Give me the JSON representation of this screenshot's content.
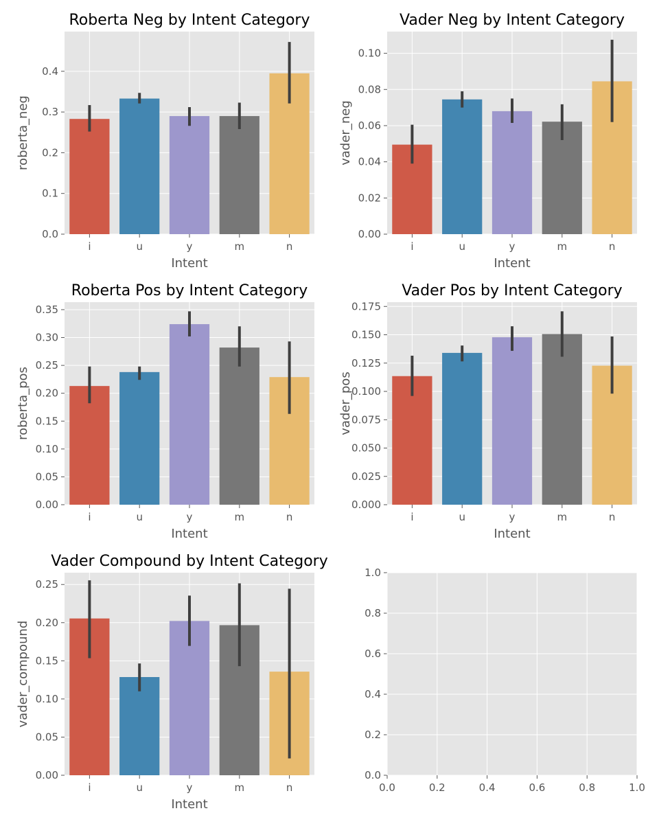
{
  "chart_data": [
    {
      "type": "bar",
      "title": "Roberta Neg by Intent Category",
      "xlabel": "Intent",
      "ylabel": "roberta_neg",
      "categories": [
        "i",
        "u",
        "y",
        "m",
        "n"
      ],
      "values": [
        0.283,
        0.333,
        0.29,
        0.29,
        0.395
      ],
      "error_bars": [
        [
          0.252,
          0.317
        ],
        [
          0.321,
          0.347
        ],
        [
          0.266,
          0.312
        ],
        [
          0.258,
          0.323
        ],
        [
          0.321,
          0.472
        ]
      ],
      "ylim": [
        0,
        0.4975
      ],
      "yticks": [
        0.0,
        0.1,
        0.2,
        0.3,
        0.4
      ],
      "tick_labels": [
        "0.0",
        "0.1",
        "0.2",
        "0.3",
        "0.4"
      ],
      "grid": true
    },
    {
      "type": "bar",
      "title": "Vader Neg by Intent Category",
      "xlabel": "Intent",
      "ylabel": "vader_neg",
      "categories": [
        "i",
        "u",
        "y",
        "m",
        "n"
      ],
      "values": [
        0.0495,
        0.0745,
        0.068,
        0.0622,
        0.0845
      ],
      "error_bars": [
        [
          0.039,
          0.0605
        ],
        [
          0.07,
          0.079
        ],
        [
          0.0615,
          0.075
        ],
        [
          0.052,
          0.0718
        ],
        [
          0.062,
          0.1075
        ]
      ],
      "ylim": [
        0,
        0.112
      ],
      "yticks": [
        0.0,
        0.02,
        0.04,
        0.06,
        0.08,
        0.1
      ],
      "tick_labels": [
        "0.00",
        "0.02",
        "0.04",
        "0.06",
        "0.08",
        "0.10"
      ],
      "grid": true
    },
    {
      "type": "bar",
      "title": "Roberta Pos by Intent Category",
      "xlabel": "Intent",
      "ylabel": "roberta_pos",
      "categories": [
        "i",
        "u",
        "y",
        "m",
        "n"
      ],
      "values": [
        0.213,
        0.238,
        0.324,
        0.282,
        0.229
      ],
      "error_bars": [
        [
          0.182,
          0.248
        ],
        [
          0.224,
          0.248
        ],
        [
          0.302,
          0.347
        ],
        [
          0.248,
          0.32
        ],
        [
          0.163,
          0.293
        ]
      ],
      "ylim": [
        0,
        0.3635
      ],
      "yticks": [
        0.0,
        0.05,
        0.1,
        0.15,
        0.2,
        0.25,
        0.3,
        0.35
      ],
      "tick_labels": [
        "0.00",
        "0.05",
        "0.10",
        "0.15",
        "0.20",
        "0.25",
        "0.30",
        "0.35"
      ],
      "grid": true
    },
    {
      "type": "bar",
      "title": "Vader Pos by Intent Category",
      "xlabel": "Intent",
      "ylabel": "vader_pos",
      "categories": [
        "i",
        "u",
        "y",
        "m",
        "n"
      ],
      "values": [
        0.1135,
        0.134,
        0.1478,
        0.1506,
        0.1227
      ],
      "error_bars": [
        [
          0.096,
          0.1315
        ],
        [
          0.1265,
          0.1405
        ],
        [
          0.1358,
          0.1575
        ],
        [
          0.1306,
          0.1707
        ],
        [
          0.098,
          0.1485
        ]
      ],
      "ylim": [
        0,
        0.1788
      ],
      "yticks": [
        0.0,
        0.025,
        0.05,
        0.075,
        0.1,
        0.125,
        0.15,
        0.175
      ],
      "tick_labels": [
        "0.000",
        "0.025",
        "0.050",
        "0.075",
        "0.100",
        "0.125",
        "0.150",
        "0.175"
      ],
      "grid": true
    },
    {
      "type": "bar",
      "title": "Vader Compound by Intent Category",
      "xlabel": "Intent",
      "ylabel": "vader_compound",
      "categories": [
        "i",
        "u",
        "y",
        "m",
        "n"
      ],
      "values": [
        0.2055,
        0.1287,
        0.2022,
        0.1967,
        0.1358
      ],
      "error_bars": [
        [
          0.1535,
          0.2555
        ],
        [
          0.11,
          0.1465
        ],
        [
          0.1695,
          0.2355
        ],
        [
          0.143,
          0.2515
        ],
        [
          0.022,
          0.2445
        ]
      ],
      "ylim": [
        0,
        0.2655
      ],
      "yticks": [
        0.0,
        0.05,
        0.1,
        0.15,
        0.2,
        0.25
      ],
      "tick_labels": [
        "0.00",
        "0.05",
        "0.10",
        "0.15",
        "0.20",
        "0.25"
      ],
      "grid": true
    },
    {
      "type": "bar",
      "title": "",
      "xlabel": "",
      "ylabel": "",
      "categories": [],
      "values": [],
      "xlim": [
        0,
        1
      ],
      "ylim": [
        0,
        1
      ],
      "xticks": [
        0.0,
        0.2,
        0.4,
        0.6,
        0.8,
        1.0
      ],
      "yticks": [
        0.0,
        0.2,
        0.4,
        0.6,
        0.8,
        1.0
      ],
      "xtick_labels": [
        "0.0",
        "0.2",
        "0.4",
        "0.6",
        "0.8",
        "1.0"
      ],
      "tick_labels": [
        "0.0",
        "0.2",
        "0.4",
        "0.6",
        "0.8",
        "1.0"
      ],
      "grid": true
    }
  ],
  "style": {
    "bar_colors": [
      "#cf5a48",
      "#4386b1",
      "#9d97cc",
      "#777777",
      "#e8bb6f"
    ],
    "axes_background": "#e5e5e5",
    "grid_color": "#ffffff",
    "errorbar_color": "#3f3f3f",
    "tick_color": "#555555"
  }
}
